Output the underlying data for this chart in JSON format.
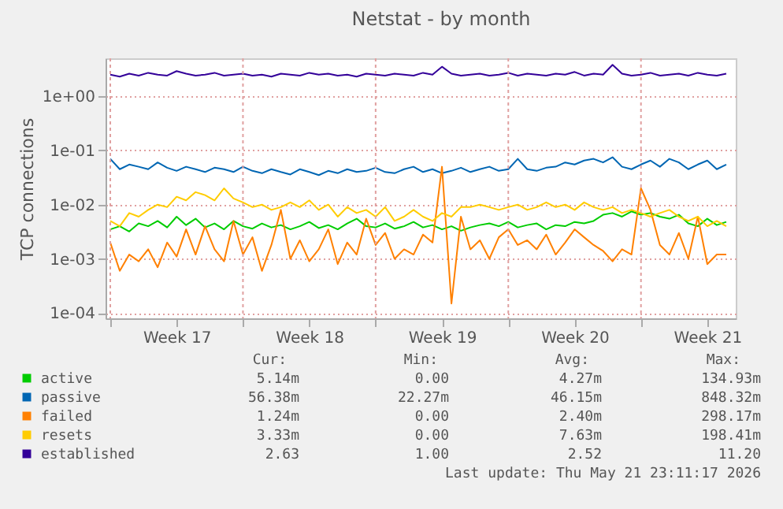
{
  "chart_data": {
    "type": "line",
    "title": "Netstat - by month",
    "ylabel": "TCP connections",
    "log": true,
    "grid": true,
    "legend": "bottom",
    "line_style": "solid",
    "marker": "none",
    "xlim": [
      "2026-04-19T18:00",
      "2026-05-23T00:00"
    ],
    "xticks": [
      {
        "value": "2026-04-20T00:00",
        "label": null
      },
      {
        "value": "2026-04-23T12:00",
        "label": "Week 17"
      },
      {
        "value": "2026-04-27T00:00",
        "label": null
      },
      {
        "value": "2026-04-30T12:00",
        "label": "Week 18"
      },
      {
        "value": "2026-05-04T00:00",
        "label": null
      },
      {
        "value": "2026-05-07T12:00",
        "label": "Week 19"
      },
      {
        "value": "2026-05-11T00:00",
        "label": null
      },
      {
        "value": "2026-05-14T12:00",
        "label": "Week 20"
      },
      {
        "value": "2026-05-18T00:00",
        "label": null
      },
      {
        "value": "2026-05-21T12:00",
        "label": "Week 21"
      }
    ],
    "ylim": [
      8e-05,
      5
    ],
    "yticks": [
      {
        "value": 0.0001,
        "label": "1e-04"
      },
      {
        "value": 0.001,
        "label": "1e-03"
      },
      {
        "value": 0.01,
        "label": "1e-02"
      },
      {
        "value": 0.1,
        "label": "1e-01"
      },
      {
        "value": 1,
        "label": "1e+00"
      }
    ],
    "x": [
      "2026-04-20T00:00",
      "2026-04-20T12:00",
      "2026-04-21T00:00",
      "2026-04-21T12:00",
      "2026-04-22T00:00",
      "2026-04-22T12:00",
      "2026-04-23T00:00",
      "2026-04-23T12:00",
      "2026-04-24T00:00",
      "2026-04-24T12:00",
      "2026-04-25T00:00",
      "2026-04-25T12:00",
      "2026-04-26T00:00",
      "2026-04-26T12:00",
      "2026-04-27T00:00",
      "2026-04-27T12:00",
      "2026-04-28T00:00",
      "2026-04-28T12:00",
      "2026-04-29T00:00",
      "2026-04-29T12:00",
      "2026-04-30T00:00",
      "2026-04-30T12:00",
      "2026-05-01T00:00",
      "2026-05-01T12:00",
      "2026-05-02T00:00",
      "2026-05-02T12:00",
      "2026-05-03T00:00",
      "2026-05-03T12:00",
      "2026-05-04T00:00",
      "2026-05-04T12:00",
      "2026-05-05T00:00",
      "2026-05-05T12:00",
      "2026-05-06T00:00",
      "2026-05-06T12:00",
      "2026-05-07T00:00",
      "2026-05-07T12:00",
      "2026-05-08T00:00",
      "2026-05-08T12:00",
      "2026-05-09T00:00",
      "2026-05-09T12:00",
      "2026-05-10T00:00",
      "2026-05-10T12:00",
      "2026-05-11T00:00",
      "2026-05-11T12:00",
      "2026-05-12T00:00",
      "2026-05-12T12:00",
      "2026-05-13T00:00",
      "2026-05-13T12:00",
      "2026-05-14T00:00",
      "2026-05-14T12:00",
      "2026-05-15T00:00",
      "2026-05-15T12:00",
      "2026-05-16T00:00",
      "2026-05-16T12:00",
      "2026-05-17T00:00",
      "2026-05-17T12:00",
      "2026-05-18T00:00",
      "2026-05-18T12:00",
      "2026-05-19T00:00",
      "2026-05-19T12:00",
      "2026-05-20T00:00",
      "2026-05-20T12:00",
      "2026-05-21T00:00",
      "2026-05-21T12:00",
      "2026-05-22T00:00",
      "2026-05-22T12:00"
    ],
    "series": [
      {
        "name": "active",
        "color": "#00cc00",
        "values": [
          0.0035,
          0.004,
          0.0032,
          0.0045,
          0.004,
          0.005,
          0.0038,
          0.006,
          0.0042,
          0.0055,
          0.0038,
          0.0045,
          0.0035,
          0.005,
          0.004,
          0.0036,
          0.0045,
          0.0038,
          0.0042,
          0.0035,
          0.004,
          0.0048,
          0.0037,
          0.0042,
          0.0035,
          0.0045,
          0.0055,
          0.004,
          0.0038,
          0.0045,
          0.0036,
          0.004,
          0.0048,
          0.0038,
          0.0042,
          0.0035,
          0.004,
          0.0033,
          0.0038,
          0.0042,
          0.0045,
          0.004,
          0.0048,
          0.0038,
          0.0042,
          0.0045,
          0.0035,
          0.0042,
          0.004,
          0.0048,
          0.0045,
          0.005,
          0.0065,
          0.007,
          0.006,
          0.0075,
          0.0065,
          0.007,
          0.006,
          0.0055,
          0.0065,
          0.0045,
          0.004,
          0.0055,
          0.0042,
          0.0048
        ]
      },
      {
        "name": "passive",
        "color": "#0066b3",
        "values": [
          0.07,
          0.045,
          0.055,
          0.05,
          0.045,
          0.06,
          0.048,
          0.042,
          0.05,
          0.045,
          0.04,
          0.048,
          0.045,
          0.04,
          0.05,
          0.042,
          0.038,
          0.045,
          0.04,
          0.036,
          0.045,
          0.04,
          0.035,
          0.042,
          0.038,
          0.045,
          0.04,
          0.042,
          0.048,
          0.04,
          0.038,
          0.045,
          0.05,
          0.04,
          0.045,
          0.038,
          0.042,
          0.048,
          0.04,
          0.045,
          0.05,
          0.042,
          0.045,
          0.07,
          0.045,
          0.042,
          0.048,
          0.05,
          0.06,
          0.055,
          0.065,
          0.07,
          0.06,
          0.075,
          0.05,
          0.045,
          0.055,
          0.065,
          0.05,
          0.07,
          0.06,
          0.045,
          0.055,
          0.065,
          0.045,
          0.055
        ]
      },
      {
        "name": "failed",
        "color": "#ff8000",
        "values": [
          0.002,
          0.0006,
          0.0012,
          0.0009,
          0.0015,
          0.0007,
          0.002,
          0.0011,
          0.0035,
          0.0012,
          0.004,
          0.0015,
          0.0009,
          0.005,
          0.0012,
          0.0025,
          0.0006,
          0.0018,
          0.008,
          0.001,
          0.0022,
          0.0009,
          0.0015,
          0.0035,
          0.0008,
          0.002,
          0.0012,
          0.0055,
          0.0018,
          0.003,
          0.001,
          0.0015,
          0.0012,
          0.0028,
          0.002,
          0.05,
          0.00015,
          0.006,
          0.0015,
          0.0022,
          0.001,
          0.0025,
          0.0035,
          0.0018,
          0.0022,
          0.0015,
          0.0028,
          0.0012,
          0.002,
          0.0035,
          0.0025,
          0.0018,
          0.0014,
          0.0009,
          0.0015,
          0.0012,
          0.02,
          0.008,
          0.0018,
          0.0012,
          0.003,
          0.001,
          0.006,
          0.0008,
          0.0012,
          0.0012
        ]
      },
      {
        "name": "resets",
        "color": "#ffcc00",
        "values": [
          0.005,
          0.004,
          0.007,
          0.006,
          0.008,
          0.01,
          0.009,
          0.014,
          0.012,
          0.017,
          0.015,
          0.012,
          0.02,
          0.013,
          0.011,
          0.009,
          0.01,
          0.008,
          0.009,
          0.011,
          0.009,
          0.012,
          0.008,
          0.01,
          0.006,
          0.009,
          0.007,
          0.008,
          0.006,
          0.009,
          0.005,
          0.006,
          0.008,
          0.006,
          0.005,
          0.007,
          0.006,
          0.009,
          0.009,
          0.01,
          0.009,
          0.008,
          0.009,
          0.01,
          0.008,
          0.009,
          0.011,
          0.009,
          0.01,
          0.008,
          0.011,
          0.009,
          0.008,
          0.009,
          0.007,
          0.008,
          0.007,
          0.006,
          0.007,
          0.008,
          0.006,
          0.005,
          0.006,
          0.004,
          0.005,
          0.004
        ]
      },
      {
        "name": "established",
        "color": "#330099",
        "values": [
          2.5,
          2.3,
          2.6,
          2.4,
          2.7,
          2.5,
          2.4,
          2.9,
          2.6,
          2.4,
          2.5,
          2.7,
          2.4,
          2.5,
          2.6,
          2.4,
          2.5,
          2.3,
          2.6,
          2.5,
          2.4,
          2.7,
          2.5,
          2.6,
          2.4,
          2.5,
          2.3,
          2.6,
          2.5,
          2.4,
          2.6,
          2.5,
          2.4,
          2.7,
          2.5,
          3.5,
          2.6,
          2.4,
          2.5,
          2.6,
          2.4,
          2.5,
          2.7,
          2.4,
          2.6,
          2.5,
          2.4,
          2.6,
          2.5,
          2.8,
          2.4,
          2.6,
          2.5,
          3.8,
          2.6,
          2.4,
          2.5,
          2.7,
          2.4,
          2.5,
          2.6,
          2.4,
          2.7,
          2.5,
          2.4,
          2.6
        ]
      }
    ],
    "annotations": [
      "Cur:",
      "Min:",
      "Avg:",
      "Max:",
      "5.14m",
      "0.00",
      "4.27m",
      "134.93m",
      "56.38m",
      "22.27m",
      "46.15m",
      "848.32m",
      "1.24m",
      "0.00",
      "2.40m",
      "298.17m",
      "3.33m",
      "0.00",
      "7.63m",
      "198.41m",
      "2.63",
      "1.00",
      "2.52",
      "11.20",
      "Last update: Thu May 21 23:11:17 2026"
    ]
  }
}
